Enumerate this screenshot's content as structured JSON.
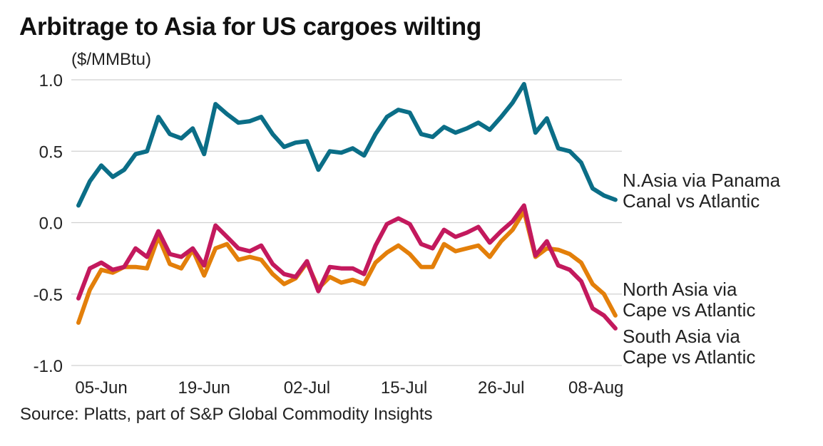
{
  "chart_data": {
    "type": "line",
    "title": "Arbitrage to Asia for US cargoes wilting",
    "ylabel": "($/MMBtu)",
    "xlabel": "",
    "source": "Source: Platts, part of S&P Global Commodity Insights",
    "ylim": [
      -1.0,
      1.0
    ],
    "yticks": [
      1.0,
      0.5,
      0.0,
      -0.5,
      -1.0
    ],
    "ytick_labels": [
      "1.0",
      "0.5",
      "0.0",
      "-0.5",
      "-1.0"
    ],
    "xtick_labels": [
      "05-Jun",
      "19-Jun",
      "02-Jul",
      "15-Jul",
      "26-Jul",
      "08-Aug"
    ],
    "xtick_positions": [
      2,
      11,
      20,
      28.5,
      37,
      45.3
    ],
    "grid": true,
    "legend": "direct labels at right",
    "point_count": 48,
    "series": [
      {
        "name": "N.Asia via Panama Canal vs Atlantic",
        "label_lines": [
          "N.Asia via Panama",
          "Canal vs Atlantic"
        ],
        "color": "#0b6e87",
        "values": [
          0.12,
          0.29,
          0.4,
          0.32,
          0.37,
          0.48,
          0.5,
          0.74,
          0.62,
          0.59,
          0.66,
          0.48,
          0.83,
          0.76,
          0.7,
          0.71,
          0.74,
          0.62,
          0.53,
          0.56,
          0.57,
          0.37,
          0.5,
          0.49,
          0.52,
          0.47,
          0.62,
          0.74,
          0.79,
          0.77,
          0.62,
          0.6,
          0.67,
          0.63,
          0.66,
          0.7,
          0.65,
          0.74,
          0.84,
          0.97,
          0.63,
          0.73,
          0.52,
          0.5,
          0.42,
          0.24,
          0.19,
          0.16
        ]
      },
      {
        "name": "North Asia via Cape vs Atlantic",
        "label_lines": [
          "North Asia via",
          "Cape vs Atlantic"
        ],
        "color": "#e37f0a",
        "values": [
          -0.7,
          -0.47,
          -0.33,
          -0.35,
          -0.31,
          -0.31,
          -0.32,
          -0.1,
          -0.29,
          -0.32,
          -0.19,
          -0.37,
          -0.18,
          -0.15,
          -0.26,
          -0.24,
          -0.26,
          -0.36,
          -0.43,
          -0.39,
          -0.28,
          -0.46,
          -0.38,
          -0.42,
          -0.4,
          -0.43,
          -0.28,
          -0.21,
          -0.16,
          -0.22,
          -0.31,
          -0.31,
          -0.15,
          -0.2,
          -0.18,
          -0.16,
          -0.24,
          -0.13,
          -0.05,
          0.08,
          -0.24,
          -0.18,
          -0.19,
          -0.22,
          -0.28,
          -0.43,
          -0.5,
          -0.65
        ]
      },
      {
        "name": "South Asia via Cape vs Atlantic",
        "label_lines": [
          "South Asia via",
          "Cape vs Atlantic"
        ],
        "color": "#c3195d",
        "values": [
          -0.53,
          -0.32,
          -0.28,
          -0.33,
          -0.31,
          -0.18,
          -0.24,
          -0.06,
          -0.22,
          -0.24,
          -0.18,
          -0.3,
          -0.02,
          -0.1,
          -0.18,
          -0.2,
          -0.16,
          -0.29,
          -0.36,
          -0.38,
          -0.27,
          -0.48,
          -0.31,
          -0.32,
          -0.32,
          -0.36,
          -0.16,
          -0.01,
          0.03,
          -0.01,
          -0.15,
          -0.18,
          -0.05,
          -0.1,
          -0.07,
          -0.03,
          -0.14,
          -0.06,
          0.01,
          0.12,
          -0.23,
          -0.13,
          -0.3,
          -0.33,
          -0.41,
          -0.6,
          -0.65,
          -0.74
        ]
      }
    ]
  }
}
